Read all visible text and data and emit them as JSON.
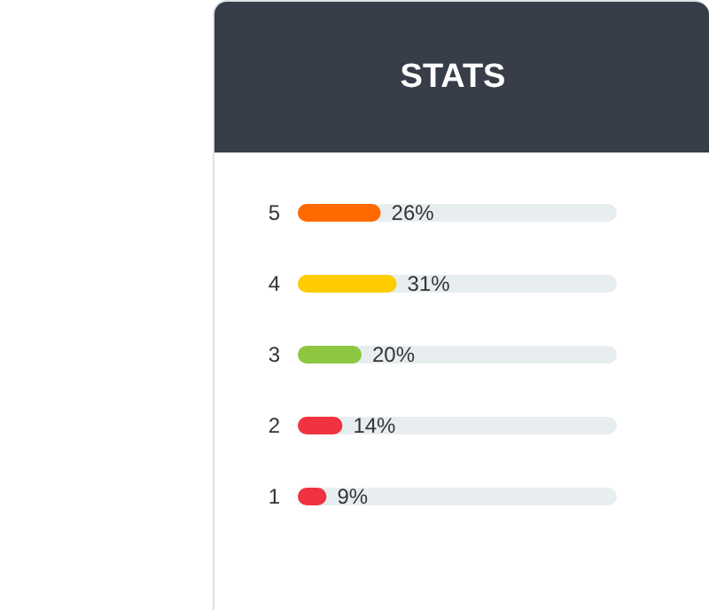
{
  "chart_data": {
    "type": "bar",
    "title": "STATS",
    "orientation": "horizontal",
    "categories": [
      "5",
      "4",
      "3",
      "2",
      "1"
    ],
    "values": [
      26,
      31,
      20,
      14,
      9
    ],
    "colors": [
      "#ff6a00",
      "#ffcc00",
      "#8dc63f",
      "#ef3340",
      "#ef3340"
    ],
    "value_labels": [
      "26%",
      "31%",
      "20%",
      "14%",
      "9%"
    ],
    "xlim": [
      0,
      100
    ],
    "tick_labels": "y"
  }
}
